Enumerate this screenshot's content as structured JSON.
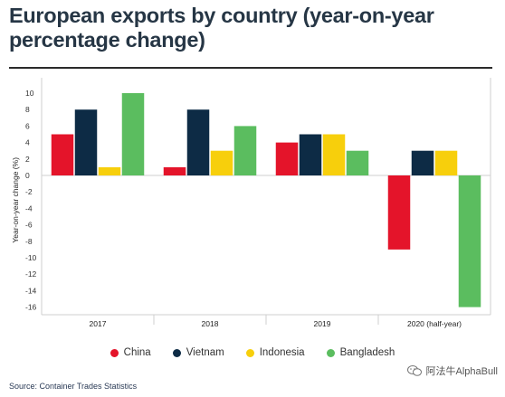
{
  "title": "European exports by country (year-on-year percentage change)",
  "source": "Source: Container Trades Statistics",
  "watermark": "阿法牛AlphaBull",
  "chart_data": {
    "type": "bar",
    "categories": [
      "2017",
      "2018",
      "2019",
      "2020 (half-year)"
    ],
    "series": [
      {
        "name": "China",
        "color": "#e4142a",
        "values": [
          5,
          1,
          4,
          -9
        ]
      },
      {
        "name": "Vietnam",
        "color": "#0d2b45",
        "values": [
          8,
          8,
          5,
          3
        ]
      },
      {
        "name": "Indonesia",
        "color": "#f7cf0c",
        "values": [
          1,
          3,
          5,
          3
        ]
      },
      {
        "name": "Bangladesh",
        "color": "#5bbd5f",
        "values": [
          10,
          6,
          3,
          -16
        ]
      }
    ],
    "ylabel": "Year-on-year change (%)",
    "xlabel": "",
    "ylim": [
      -16.7,
      11
    ],
    "yticks": [
      10,
      8,
      6,
      4,
      2,
      0,
      -2,
      -4,
      -6,
      -8,
      -10,
      -12,
      -14,
      -16
    ],
    "grid": false,
    "legend_position": "bottom"
  }
}
